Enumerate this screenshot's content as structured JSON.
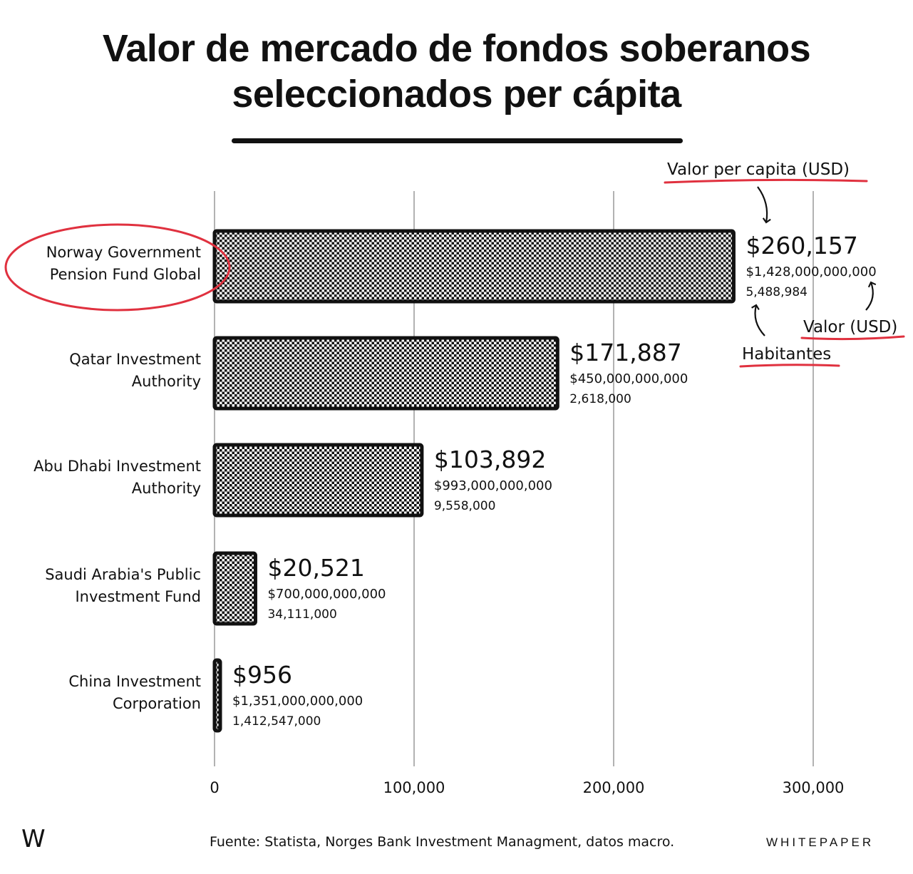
{
  "chart_data": {
    "type": "bar",
    "orientation": "horizontal",
    "title": "Valor de mercado de fondos soberanos seleccionados per cápita",
    "categories": [
      "Norway Government Pension Fund Global",
      "Qatar Investment Authority",
      "Abu Dhabi Investment Authority",
      "Saudi Arabia's Public Investment Fund",
      "China Investment Corporation"
    ],
    "category_lines": [
      [
        "Norway Government",
        "Pension Fund Global"
      ],
      [
        "Qatar Investment",
        "Authority"
      ],
      [
        "Abu Dhabi Investment",
        "Authority"
      ],
      [
        "Saudi Arabia's Public",
        "Investment Fund"
      ],
      [
        "China Investment",
        "Corporation"
      ]
    ],
    "values": [
      260157,
      171887,
      103892,
      20521,
      956
    ],
    "value_labels": [
      "$260,157",
      "$171,887",
      "$103,892",
      "$20,521",
      "$956"
    ],
    "total_value_labels": [
      "$1,428,000,000,000",
      "$450,000,000,000",
      "$993,000,000,000",
      "$700,000,000,000",
      "$1,351,000,000,000"
    ],
    "population_labels": [
      "5,488,984",
      "2,618,000",
      "9,558,000",
      "34,111,000",
      "1,412,547,000"
    ],
    "xlim": [
      0,
      300000
    ],
    "xticks": [
      0,
      100000,
      200000,
      300000
    ],
    "xtick_labels": [
      "0",
      "100,000",
      "200,000",
      "300,000"
    ],
    "grid": true,
    "highlighted_category": "Norway Government Pension Fund Global",
    "annotations": {
      "per_capita": "Valor per capita (USD)",
      "value": "Valor (USD)",
      "population": "Habitantes"
    }
  },
  "colors": {
    "bar_fill": "#111111",
    "accent": "#e0313f",
    "grid": "#999999"
  },
  "footer": {
    "logo": "W",
    "source": "Fuente: Statista, Norges Bank Investment Managment, datos macro.",
    "brand": "WHITEPAPER"
  }
}
